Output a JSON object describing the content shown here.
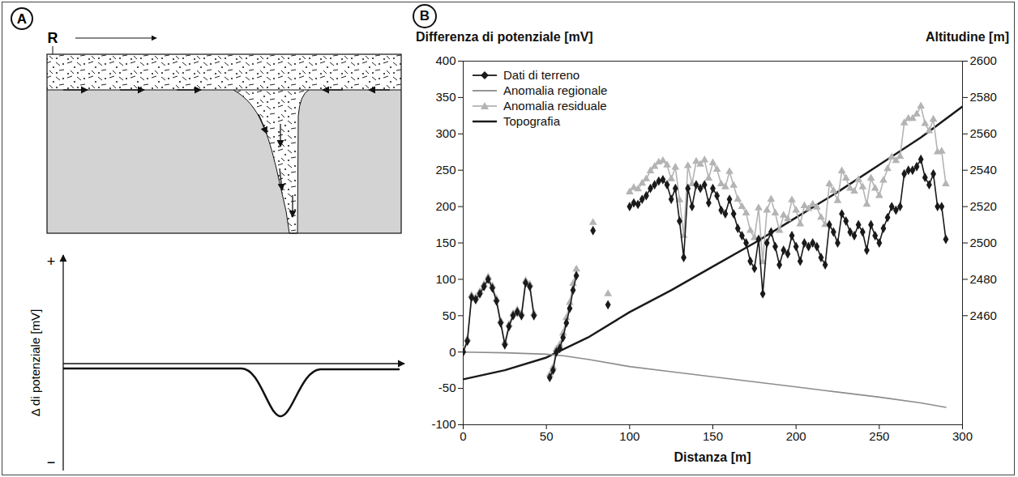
{
  "diagram": {
    "panel_label": "A",
    "reference_label": "R",
    "y_axis_label": "Δ di potenziale [mV]",
    "y_axis_plus": "+",
    "y_axis_minus": "−"
  },
  "chart_data": {
    "type": "line",
    "panel_label": "B",
    "y_label": "Differenza di potenziale [mV]",
    "y2_label": "Altitudine [m]",
    "x_label": "Distanza [m]",
    "xlim": [
      0,
      300
    ],
    "xticks": [
      0,
      50,
      100,
      150,
      200,
      250,
      300
    ],
    "ylim": [
      -100,
      400
    ],
    "yticks": [
      -100,
      -50,
      0,
      50,
      100,
      150,
      200,
      250,
      300,
      350,
      400
    ],
    "y2lim": [
      2400,
      2600
    ],
    "y2ticks": [
      2460,
      2480,
      2500,
      2520,
      2540,
      2560,
      2580,
      2600
    ],
    "grid": false,
    "legend": "top-left",
    "series": [
      {
        "name": "Dati di terreno",
        "color": "#1a1a1a",
        "marker": "diamond",
        "line_style": "solid",
        "x": [
          0,
          2.5,
          5,
          7.5,
          10,
          12.5,
          15,
          17.5,
          20,
          22.5,
          25,
          27.5,
          30,
          32.5,
          35,
          37.5,
          40,
          42.5,
          47.5,
          52,
          54,
          56,
          58,
          60,
          62,
          64,
          66,
          68,
          73,
          78,
          82,
          87,
          95,
          100,
          102.5,
          105,
          107.5,
          110,
          112.5,
          115,
          117.5,
          120,
          122.5,
          125,
          127.5,
          130,
          132.5,
          135,
          137.5,
          140,
          142.5,
          145,
          147.5,
          150,
          152.5,
          155,
          157.5,
          160,
          162.5,
          165,
          167.5,
          170,
          172.5,
          175,
          177.5,
          180,
          182.5,
          185,
          187.5,
          190,
          192.5,
          195,
          197.5,
          200,
          202.5,
          205,
          207.5,
          210,
          212.5,
          215,
          217.5,
          220,
          222.5,
          225,
          227.5,
          230,
          232.5,
          235,
          237.5,
          240,
          242.5,
          245,
          247.5,
          250,
          252.5,
          255,
          257.5,
          260,
          262.5,
          265,
          267.5,
          270,
          272.5,
          275,
          277.5,
          280,
          282.5,
          285,
          287.5,
          290
        ],
        "values": [
          0,
          15,
          75,
          72,
          80,
          90,
          100,
          88,
          70,
          40,
          10,
          35,
          50,
          55,
          50,
          95,
          90,
          50,
          null,
          -35,
          -25,
          0,
          5,
          20,
          40,
          60,
          85,
          105,
          null,
          167,
          null,
          65,
          null,
          200,
          205,
          203,
          210,
          215,
          225,
          230,
          235,
          237,
          230,
          210,
          225,
          180,
          130,
          225,
          200,
          230,
          225,
          230,
          205,
          225,
          215,
          195,
          190,
          210,
          190,
          170,
          160,
          150,
          125,
          115,
          155,
          80,
          150,
          165,
          145,
          120,
          140,
          135,
          160,
          145,
          125,
          150,
          145,
          150,
          145,
          130,
          120,
          175,
          165,
          150,
          190,
          180,
          165,
          160,
          175,
          165,
          140,
          175,
          160,
          150,
          170,
          185,
          200,
          195,
          200,
          245,
          250,
          250,
          255,
          265,
          240,
          230,
          245,
          200,
          200,
          155
        ]
      },
      {
        "name": "Anomalia regionale",
        "color": "#8c8c8c",
        "line_style": "solid",
        "x": [
          0,
          25,
          50,
          60,
          75,
          100,
          125,
          150,
          175,
          200,
          225,
          250,
          275,
          290
        ],
        "values": [
          0,
          -1,
          -3,
          -5,
          -10,
          -20,
          -27,
          -34,
          -41,
          -48,
          -55,
          -62,
          -70,
          -76
        ]
      },
      {
        "name": "Anomalia residuale",
        "color": "#b4b4b4",
        "marker": "triangle",
        "line_style": "solid",
        "x": [
          0,
          2.5,
          5,
          7.5,
          10,
          12.5,
          15,
          17.5,
          20,
          22.5,
          25,
          27.5,
          30,
          32.5,
          35,
          37.5,
          40,
          42.5,
          47.5,
          52,
          54,
          56,
          58,
          60,
          62,
          64,
          66,
          68,
          73,
          78,
          82,
          87,
          95,
          100,
          102.5,
          105,
          107.5,
          110,
          112.5,
          115,
          117.5,
          120,
          122.5,
          125,
          127.5,
          130,
          132.5,
          135,
          137.5,
          140,
          142.5,
          145,
          147.5,
          150,
          152.5,
          155,
          157.5,
          160,
          162.5,
          165,
          167.5,
          170,
          172.5,
          175,
          177.5,
          180,
          182.5,
          185,
          187.5,
          190,
          192.5,
          195,
          197.5,
          200,
          202.5,
          205,
          207.5,
          210,
          212.5,
          215,
          217.5,
          220,
          222.5,
          225,
          227.5,
          230,
          232.5,
          235,
          237.5,
          240,
          242.5,
          245,
          247.5,
          250,
          252.5,
          255,
          257.5,
          260,
          262.5,
          265,
          267.5,
          270,
          272.5,
          275,
          277.5,
          280,
          282.5,
          285,
          287.5,
          290
        ],
        "values": [
          2,
          18,
          78,
          75,
          83,
          93,
          103,
          91,
          73,
          43,
          13,
          38,
          53,
          58,
          53,
          98,
          93,
          53,
          null,
          -31,
          -21,
          4,
          10,
          26,
          47,
          68,
          94,
          114,
          null,
          178,
          null,
          80,
          null,
          220,
          226,
          224,
          232,
          238,
          249,
          255,
          261,
          263,
          257,
          238,
          254,
          209,
          160,
          256,
          231,
          262,
          258,
          264,
          239,
          260,
          251,
          231,
          227,
          248,
          229,
          210,
          200,
          191,
          167,
          157,
          198,
          124,
          195,
          210,
          191,
          167,
          188,
          183,
          209,
          195,
          176,
          201,
          197,
          203,
          199,
          185,
          175,
          231,
          222,
          208,
          249,
          239,
          225,
          221,
          237,
          227,
          203,
          239,
          225,
          215,
          236,
          252,
          268,
          263,
          269,
          315,
          321,
          321,
          327,
          338,
          314,
          304,
          320,
          275,
          276,
          231
        ]
      },
      {
        "name": "Topografia",
        "color": "#1a1a1a",
        "line_style": "solid",
        "axis": "y2",
        "x": [
          0,
          25,
          50,
          75,
          100,
          125,
          150,
          175,
          200,
          225,
          250,
          275,
          300
        ],
        "values": [
          2425,
          2430,
          2437,
          2448,
          2462,
          2474,
          2487,
          2500,
          2514,
          2528,
          2543,
          2558,
          2575
        ]
      }
    ]
  }
}
